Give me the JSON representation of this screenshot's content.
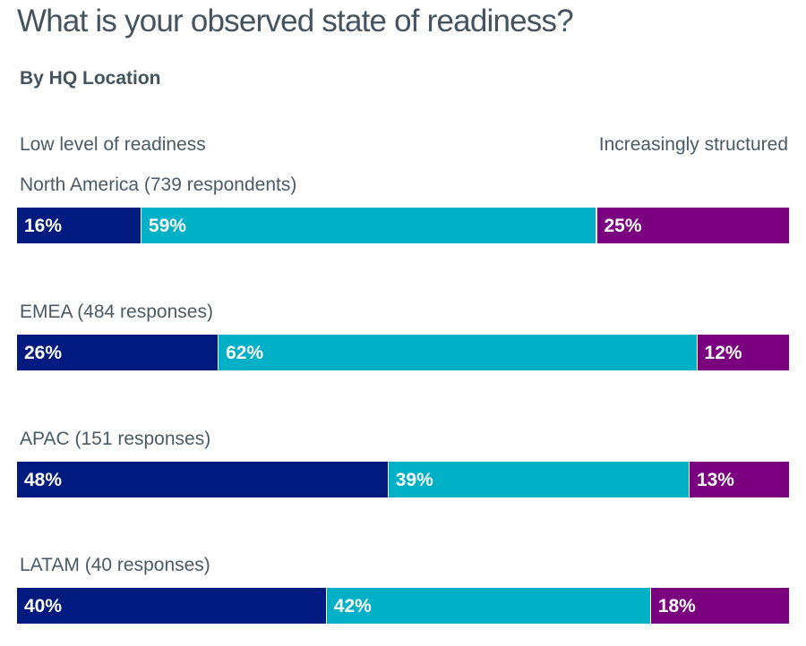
{
  "chart_data": {
    "type": "bar",
    "orientation": "horizontal",
    "stacked": true,
    "percent": true,
    "title": "What is your observed state of readiness?",
    "subtitle": "By HQ Location",
    "scale_left_label": "Low level of readiness",
    "scale_right_label": "Increasingly structured",
    "colors": [
      "#001a80",
      "#00b0c6",
      "#7b0080"
    ],
    "categories": [
      "North America (739 respondents)",
      "EMEA (484 responses)",
      "APAC (151 responses)",
      "LATAM (40 responses)"
    ],
    "series": [
      {
        "values": [
          16,
          26,
          48,
          40
        ]
      },
      {
        "values": [
          59,
          62,
          39,
          42
        ]
      },
      {
        "values": [
          25,
          12,
          13,
          18
        ]
      }
    ],
    "data_labels": [
      [
        "16%",
        "59%",
        "25%"
      ],
      [
        "26%",
        "62%",
        "12%"
      ],
      [
        "48%",
        "39%",
        "13%"
      ],
      [
        "40%",
        "42%",
        "18%"
      ]
    ],
    "xlim": [
      0,
      100
    ],
    "grid": false,
    "legend": "none"
  }
}
